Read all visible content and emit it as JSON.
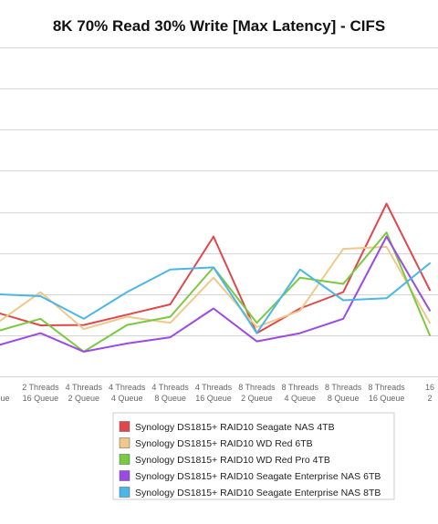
{
  "chart_data": {
    "type": "line",
    "title": "8K 70% Read 30% Write [Max Latency] - CIFS",
    "xlabel": "",
    "ylabel": "",
    "grid": true,
    "legend_position": "bottom",
    "categories": [
      {
        "line1": "",
        "line2": "Queue"
      },
      {
        "line1": "2 Threads",
        "line2": "16 Queue"
      },
      {
        "line1": "4 Threads",
        "line2": "2 Queue"
      },
      {
        "line1": "4 Threads",
        "line2": "4 Queue"
      },
      {
        "line1": "4 Threads",
        "line2": "8 Queue"
      },
      {
        "line1": "4 Threads",
        "line2": "16 Queue"
      },
      {
        "line1": "8 Threads",
        "line2": "2 Queue"
      },
      {
        "line1": "8 Threads",
        "line2": "4 Queue"
      },
      {
        "line1": "8 Threads",
        "line2": "8 Queue"
      },
      {
        "line1": "8 Threads",
        "line2": "16 Queue"
      },
      {
        "line1": "16",
        "line2": "2"
      }
    ],
    "ylim": [
      0,
      8
    ],
    "y_gridlines": [
      0,
      1,
      2,
      3,
      4,
      5,
      6,
      7,
      8
    ],
    "series": [
      {
        "name": "Synology DS1815+ RAID10 Seagate NAS 4TB",
        "color": "#e0474c",
        "values": [
          1.55,
          1.24,
          1.25,
          1.5,
          1.75,
          3.4,
          1.05,
          1.65,
          2.05,
          4.2,
          2.1
        ]
      },
      {
        "name": "Synology DS1815+ RAID10 WD Red 6TB",
        "color": "#efc98a",
        "values": [
          1.3,
          2.05,
          1.15,
          1.45,
          1.3,
          2.4,
          1.2,
          1.6,
          3.1,
          3.15,
          1.3
        ]
      },
      {
        "name": "Synology DS1815+ RAID10 WD Red Pro 4TB",
        "color": "#7ac943",
        "values": [
          1.1,
          1.4,
          0.6,
          1.25,
          1.45,
          2.65,
          1.3,
          2.4,
          2.25,
          3.5,
          1.0
        ]
      },
      {
        "name": "Synology DS1815+ RAID10 Seagate Enterprise NAS 6TB",
        "color": "#9b4ae6",
        "values": [
          0.75,
          1.05,
          0.6,
          0.8,
          0.95,
          1.65,
          0.85,
          1.05,
          1.4,
          3.4,
          1.6
        ]
      },
      {
        "name": "Synology DS1815+ RAID10 Seagate Enterprise NAS 8TB",
        "color": "#4bb6e8",
        "values": [
          2.0,
          1.95,
          1.4,
          2.05,
          2.6,
          2.65,
          1.05,
          2.6,
          1.85,
          1.9,
          2.75
        ]
      }
    ]
  }
}
